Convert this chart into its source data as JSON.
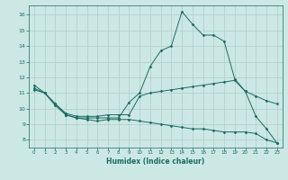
{
  "title": "",
  "xlabel": "Humidex (Indice chaleur)",
  "ylabel": "",
  "bg_color": "#cce8e4",
  "grid_color": "#b0ccc8",
  "line_color": "#1a6b60",
  "xlim": [
    -0.5,
    23.5
  ],
  "ylim": [
    7.5,
    16.6
  ],
  "yticks": [
    8,
    9,
    10,
    11,
    12,
    13,
    14,
    15,
    16
  ],
  "xticks": [
    0,
    1,
    2,
    3,
    4,
    5,
    6,
    7,
    8,
    9,
    10,
    11,
    12,
    13,
    14,
    15,
    16,
    17,
    18,
    19,
    20,
    21,
    22,
    23
  ],
  "hours": [
    0,
    1,
    2,
    3,
    4,
    5,
    6,
    7,
    8,
    9,
    10,
    11,
    12,
    13,
    14,
    15,
    16,
    17,
    18,
    19,
    20,
    21,
    22,
    23
  ],
  "line1": [
    11.5,
    11.0,
    10.2,
    9.6,
    9.4,
    9.4,
    9.4,
    9.4,
    9.4,
    10.4,
    11.0,
    12.7,
    13.7,
    14.0,
    16.2,
    15.4,
    14.7,
    14.7,
    14.3,
    11.9,
    11.1,
    9.5,
    8.7,
    7.8
  ],
  "line2": [
    11.3,
    11.0,
    10.3,
    9.7,
    9.5,
    9.5,
    9.5,
    9.6,
    9.6,
    9.6,
    10.8,
    11.0,
    11.1,
    11.2,
    11.3,
    11.4,
    11.5,
    11.6,
    11.7,
    11.8,
    11.1,
    10.8,
    10.5,
    10.3
  ],
  "line3": [
    11.2,
    11.0,
    10.3,
    9.6,
    9.4,
    9.3,
    9.2,
    9.3,
    9.3,
    9.3,
    9.2,
    9.1,
    9.0,
    8.9,
    8.8,
    8.7,
    8.7,
    8.6,
    8.5,
    8.5,
    8.5,
    8.4,
    8.0,
    7.8
  ]
}
